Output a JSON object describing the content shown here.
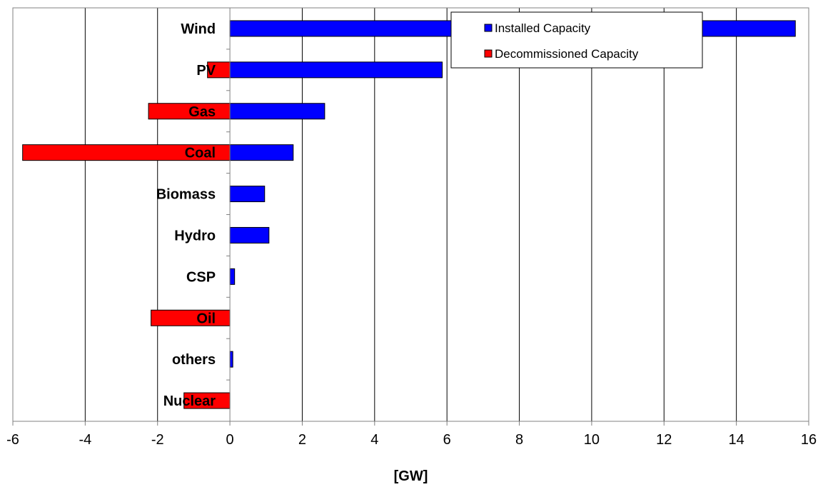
{
  "chart_data": {
    "type": "bar",
    "orientation": "horizontal",
    "title": "",
    "xlabel": "[GW]",
    "ylabel": "",
    "xlim": [
      -6,
      16
    ],
    "xticks": [
      -6,
      -4,
      -2,
      0,
      2,
      4,
      6,
      8,
      10,
      12,
      14,
      16
    ],
    "grid": "vertical",
    "legend_position": "top-right",
    "categories": [
      "Nuclear",
      "others",
      "Oil",
      "CSP",
      "Hydro",
      "Biomass",
      "Coal",
      "Gas",
      "PV",
      "Wind"
    ],
    "series": [
      {
        "name": "Installed Capacity",
        "color": "#0000ff",
        "values": [
          0,
          0.08,
          0,
          0.13,
          1.08,
          0.96,
          1.75,
          2.62,
          5.87,
          15.63
        ]
      },
      {
        "name": "Decommissioned Capacity",
        "color": "#ff0000",
        "values": [
          -1.27,
          0,
          -2.18,
          0,
          0,
          0,
          -5.73,
          -2.25,
          -0.62,
          0
        ]
      }
    ]
  }
}
